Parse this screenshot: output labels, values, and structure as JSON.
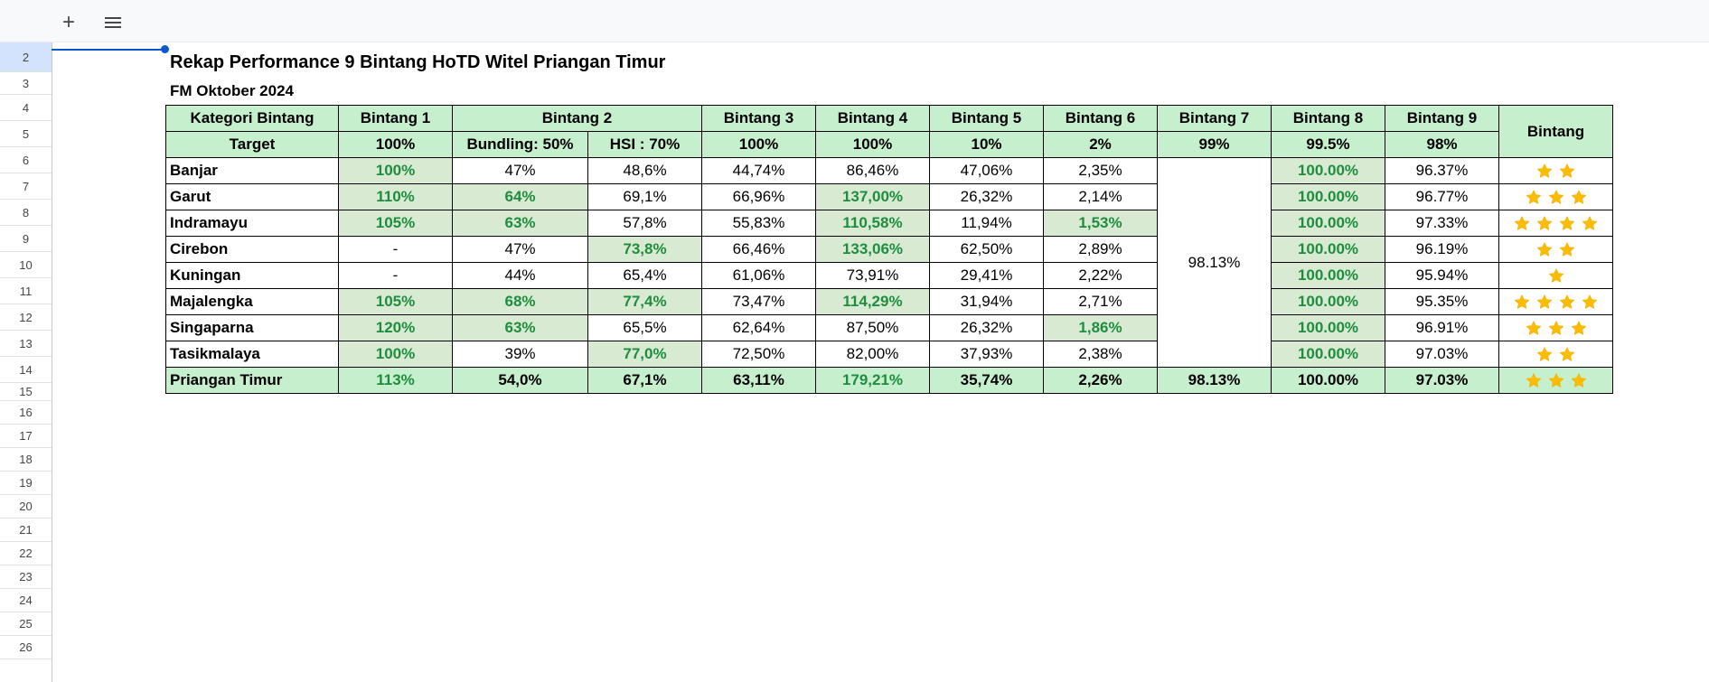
{
  "toolbar": {
    "add_icon": "plus-icon",
    "menu_icon": "menu-icon"
  },
  "row_numbers": [
    "2",
    "3",
    "4",
    "5",
    "6",
    "7",
    "8",
    "9",
    "10",
    "11",
    "12",
    "13",
    "14",
    "15",
    "16",
    "17",
    "18",
    "19",
    "20",
    "21",
    "22",
    "23",
    "24",
    "25",
    "26"
  ],
  "sheet": {
    "title": "Rekap Performance 9 Bintang HoTD Witel Priangan Timur",
    "subtitle": "FM Oktober 2024"
  },
  "table": {
    "header1": {
      "kategori": "Kategori Bintang",
      "b1": "Bintang 1",
      "b2": "Bintang 2",
      "b3": "Bintang 3",
      "b4": "Bintang 4",
      "b5": "Bintang 5",
      "b6": "Bintang 6",
      "b7": "Bintang 7",
      "b8": "Bintang 8",
      "b9": "Bintang 9",
      "bintang": "Bintang"
    },
    "header2": {
      "target": "Target",
      "b1": "100%",
      "b2a": "Bundling: 50%",
      "b2b": "HSI : 70%",
      "b3": "100%",
      "b4": "100%",
      "b5": "10%",
      "b6": "2%",
      "b7": "99%",
      "b8": "99.5%",
      "b9": "98%"
    },
    "b7_merged": "98.13%",
    "colors": {
      "header_bg": "#c6efce",
      "hit_bg": "#d9ead3",
      "hit_text": "#1e8e3e",
      "star": "#fbbc04"
    },
    "star_icon": "star-icon",
    "rows": [
      {
        "name": "Banjar",
        "b1": "100%",
        "b2a": "47%",
        "b2b": "48,6%",
        "b3": "44,74%",
        "b4": "86,46%",
        "b5": "47,06%",
        "b6": "2,35%",
        "b8": "100.00%",
        "b9": "96.37%",
        "stars": 2,
        "hit": [
          "b1",
          "b8"
        ]
      },
      {
        "name": "Garut",
        "b1": "110%",
        "b2a": "64%",
        "b2b": "69,1%",
        "b3": "66,96%",
        "b4": "137,00%",
        "b5": "26,32%",
        "b6": "2,14%",
        "b8": "100.00%",
        "b9": "96.77%",
        "stars": 3,
        "hit": [
          "b1",
          "b2a",
          "b4",
          "b8"
        ]
      },
      {
        "name": "Indramayu",
        "b1": "105%",
        "b2a": "63%",
        "b2b": "57,8%",
        "b3": "55,83%",
        "b4": "110,58%",
        "b5": "11,94%",
        "b6": "1,53%",
        "b8": "100.00%",
        "b9": "97.33%",
        "stars": 4,
        "hit": [
          "b1",
          "b2a",
          "b4",
          "b6",
          "b8"
        ]
      },
      {
        "name": "Cirebon",
        "b1": "-",
        "b2a": "47%",
        "b2b": "73,8%",
        "b3": "66,46%",
        "b4": "133,06%",
        "b5": "62,50%",
        "b6": "2,89%",
        "b8": "100.00%",
        "b9": "96.19%",
        "stars": 2,
        "hit": [
          "b2b",
          "b4",
          "b8"
        ]
      },
      {
        "name": "Kuningan",
        "b1": "-",
        "b2a": "44%",
        "b2b": "65,4%",
        "b3": "61,06%",
        "b4": "73,91%",
        "b5": "29,41%",
        "b6": "2,22%",
        "b8": "100.00%",
        "b9": "95.94%",
        "stars": 1,
        "hit": [
          "b8"
        ]
      },
      {
        "name": "Majalengka",
        "b1": "105%",
        "b2a": "68%",
        "b2b": "77,4%",
        "b3": "73,47%",
        "b4": "114,29%",
        "b5": "31,94%",
        "b6": "2,71%",
        "b8": "100.00%",
        "b9": "95.35%",
        "stars": 4,
        "hit": [
          "b1",
          "b2a",
          "b2b",
          "b4",
          "b8"
        ]
      },
      {
        "name": "Singaparna",
        "b1": "120%",
        "b2a": "63%",
        "b2b": "65,5%",
        "b3": "62,64%",
        "b4": "87,50%",
        "b5": "26,32%",
        "b6": "1,86%",
        "b8": "100.00%",
        "b9": "96.91%",
        "stars": 3,
        "hit": [
          "b1",
          "b2a",
          "b6",
          "b8"
        ]
      },
      {
        "name": "Tasikmalaya",
        "b1": "100%",
        "b2a": "39%",
        "b2b": "77,0%",
        "b3": "72,50%",
        "b4": "82,00%",
        "b5": "37,93%",
        "b6": "2,38%",
        "b8": "100.00%",
        "b9": "97.03%",
        "stars": 2,
        "hit": [
          "b1",
          "b2b",
          "b8"
        ]
      }
    ],
    "total": {
      "name": "Priangan Timur",
      "b1": "113%",
      "b2a": "54,0%",
      "b2b": "67,1%",
      "b3": "63,11%",
      "b4": "179,21%",
      "b5": "35,74%",
      "b6": "2,26%",
      "b7": "98.13%",
      "b8": "100.00%",
      "b9": "97.03%",
      "stars": 3,
      "hit": [
        "b1",
        "b4"
      ]
    }
  }
}
